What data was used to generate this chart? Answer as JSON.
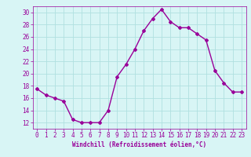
{
  "x": [
    0,
    1,
    2,
    3,
    4,
    5,
    6,
    7,
    8,
    9,
    10,
    11,
    12,
    13,
    14,
    15,
    16,
    17,
    18,
    19,
    20,
    21,
    22,
    23
  ],
  "y": [
    17.5,
    16.5,
    16.0,
    15.5,
    12.5,
    12.0,
    12.0,
    12.0,
    14.0,
    19.5,
    21.5,
    24.0,
    27.0,
    29.0,
    30.5,
    28.5,
    27.5,
    27.5,
    26.5,
    25.5,
    20.5,
    18.5,
    17.0,
    17.0
  ],
  "line_color": "#990099",
  "marker": "D",
  "marker_size": 2.0,
  "bg_color": "#d8f5f5",
  "grid_color": "#b0e0e0",
  "xlabel": "Windchill (Refroidissement éolien,°C)",
  "xlabel_color": "#990099",
  "tick_color": "#990099",
  "spine_color": "#990099",
  "ylim": [
    11,
    31
  ],
  "xlim": [
    -0.5,
    23.5
  ],
  "yticks": [
    12,
    14,
    16,
    18,
    20,
    22,
    24,
    26,
    28,
    30
  ],
  "xticks": [
    0,
    1,
    2,
    3,
    4,
    5,
    6,
    7,
    8,
    9,
    10,
    11,
    12,
    13,
    14,
    15,
    16,
    17,
    18,
    19,
    20,
    21,
    22,
    23
  ],
  "label_fontsize": 5.5,
  "tick_fontsize": 5.5,
  "line_width": 1.0
}
